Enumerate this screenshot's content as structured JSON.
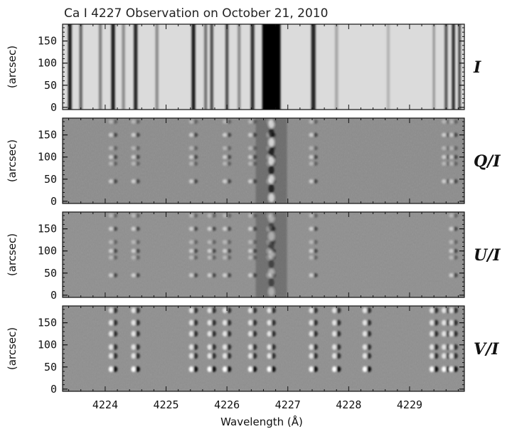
{
  "chart_data": {
    "type": "heatmap",
    "title": "Ca I 4227 Observation on October 21, 2010",
    "xlabel": "Wavelength (Å)",
    "xlim": [
      4223.3,
      4229.9
    ],
    "x_ticks": [
      4224,
      4225,
      4226,
      4227,
      4228,
      4229
    ],
    "ylabel": "(arcsec)",
    "ylim": [
      -5,
      188
    ],
    "y_ticks": [
      0,
      50,
      100,
      150
    ],
    "panels": [
      {
        "label": "I",
        "kind": "intensity",
        "background": 0.86,
        "lines": [
          {
            "x": 4223.42,
            "w": 0.06,
            "v": 0.1
          },
          {
            "x": 4223.6,
            "w": 0.05,
            "v": 0.4
          },
          {
            "x": 4223.92,
            "w": 0.05,
            "v": 0.5
          },
          {
            "x": 4224.13,
            "w": 0.06,
            "v": 0.12
          },
          {
            "x": 4224.3,
            "w": 0.05,
            "v": 0.55
          },
          {
            "x": 4224.5,
            "w": 0.06,
            "v": 0.15
          },
          {
            "x": 4224.85,
            "w": 0.05,
            "v": 0.55
          },
          {
            "x": 4225.45,
            "w": 0.06,
            "v": 0.12
          },
          {
            "x": 4225.65,
            "w": 0.05,
            "v": 0.45
          },
          {
            "x": 4225.75,
            "w": 0.05,
            "v": 0.3
          },
          {
            "x": 4226.0,
            "w": 0.05,
            "v": 0.3
          },
          {
            "x": 4226.2,
            "w": 0.05,
            "v": 0.55
          },
          {
            "x": 4226.42,
            "w": 0.06,
            "v": 0.2
          },
          {
            "x": 4226.73,
            "w": 0.3,
            "v": 0.02
          },
          {
            "x": 4227.42,
            "w": 0.07,
            "v": 0.15
          },
          {
            "x": 4227.8,
            "w": 0.05,
            "v": 0.65
          },
          {
            "x": 4228.65,
            "w": 0.05,
            "v": 0.7
          },
          {
            "x": 4229.4,
            "w": 0.04,
            "v": 0.6
          },
          {
            "x": 4229.6,
            "w": 0.05,
            "v": 0.35
          },
          {
            "x": 4229.72,
            "w": 0.05,
            "v": 0.18
          },
          {
            "x": 4229.82,
            "w": 0.04,
            "v": 0.25
          }
        ]
      },
      {
        "label": "Q/I",
        "kind": "polarization",
        "background": 0.55,
        "lines": [
          4224.13,
          4224.5,
          4225.45,
          4226.0,
          4226.42,
          4226.73,
          4227.42,
          4229.6,
          4229.72
        ],
        "core": [
          4226.73,
          0.68
        ]
      },
      {
        "label": "U/I",
        "kind": "polarization",
        "background": 0.56,
        "lines": [
          4224.13,
          4224.5,
          4225.45,
          4225.75,
          4226.0,
          4226.42,
          4226.73,
          4227.42,
          4229.72
        ],
        "core": [
          4226.73,
          0.42
        ]
      },
      {
        "label": "V/I",
        "kind": "circular",
        "background": 0.56,
        "lines": [
          4224.13,
          4224.5,
          4225.45,
          4225.75,
          4226.0,
          4226.42,
          4226.73,
          4227.42,
          4227.8,
          4228.3,
          4229.4,
          4229.6,
          4229.72
        ],
        "blob_rows": [
          45,
          75,
          95,
          125,
          150,
          178
        ]
      }
    ]
  }
}
